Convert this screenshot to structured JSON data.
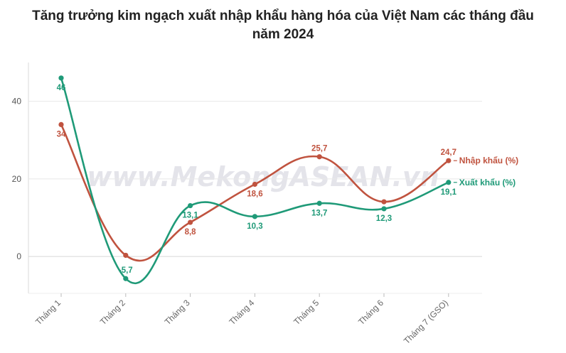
{
  "title": {
    "line1": "Tăng trưởng kim ngạch xuất nhập khẩu hàng hóa của Việt Nam các tháng đầu",
    "line2": "năm 2024"
  },
  "watermark": "www.MekongASEAN.vn",
  "chart_data": {
    "type": "line",
    "categories": [
      "Tháng 1",
      "Tháng 2",
      "Tháng 3",
      "Tháng 4",
      "Tháng 5",
      "Tháng 6",
      "Tháng 7 (GSO)"
    ],
    "yticks": [
      0,
      20,
      40
    ],
    "ylim": [
      -9.5,
      50
    ],
    "grid": true,
    "series": [
      {
        "name": "Nhập khẩu (%)",
        "color": "#c0533f",
        "values": [
          34,
          0.3,
          8.8,
          18.6,
          25.7,
          14.1,
          24.7
        ],
        "labels": [
          "34",
          "",
          "8,8",
          "18,6",
          "25,7",
          "",
          "24,7"
        ]
      },
      {
        "name": "Xuất khẩu (%)",
        "color": "#1f9a78",
        "values": [
          46,
          -5.7,
          13.1,
          10.3,
          13.7,
          12.3,
          19.1
        ],
        "labels": [
          "46",
          "-5,7",
          "13,1",
          "10,3",
          "13,7",
          "12,3",
          "19,1"
        ]
      }
    ]
  }
}
